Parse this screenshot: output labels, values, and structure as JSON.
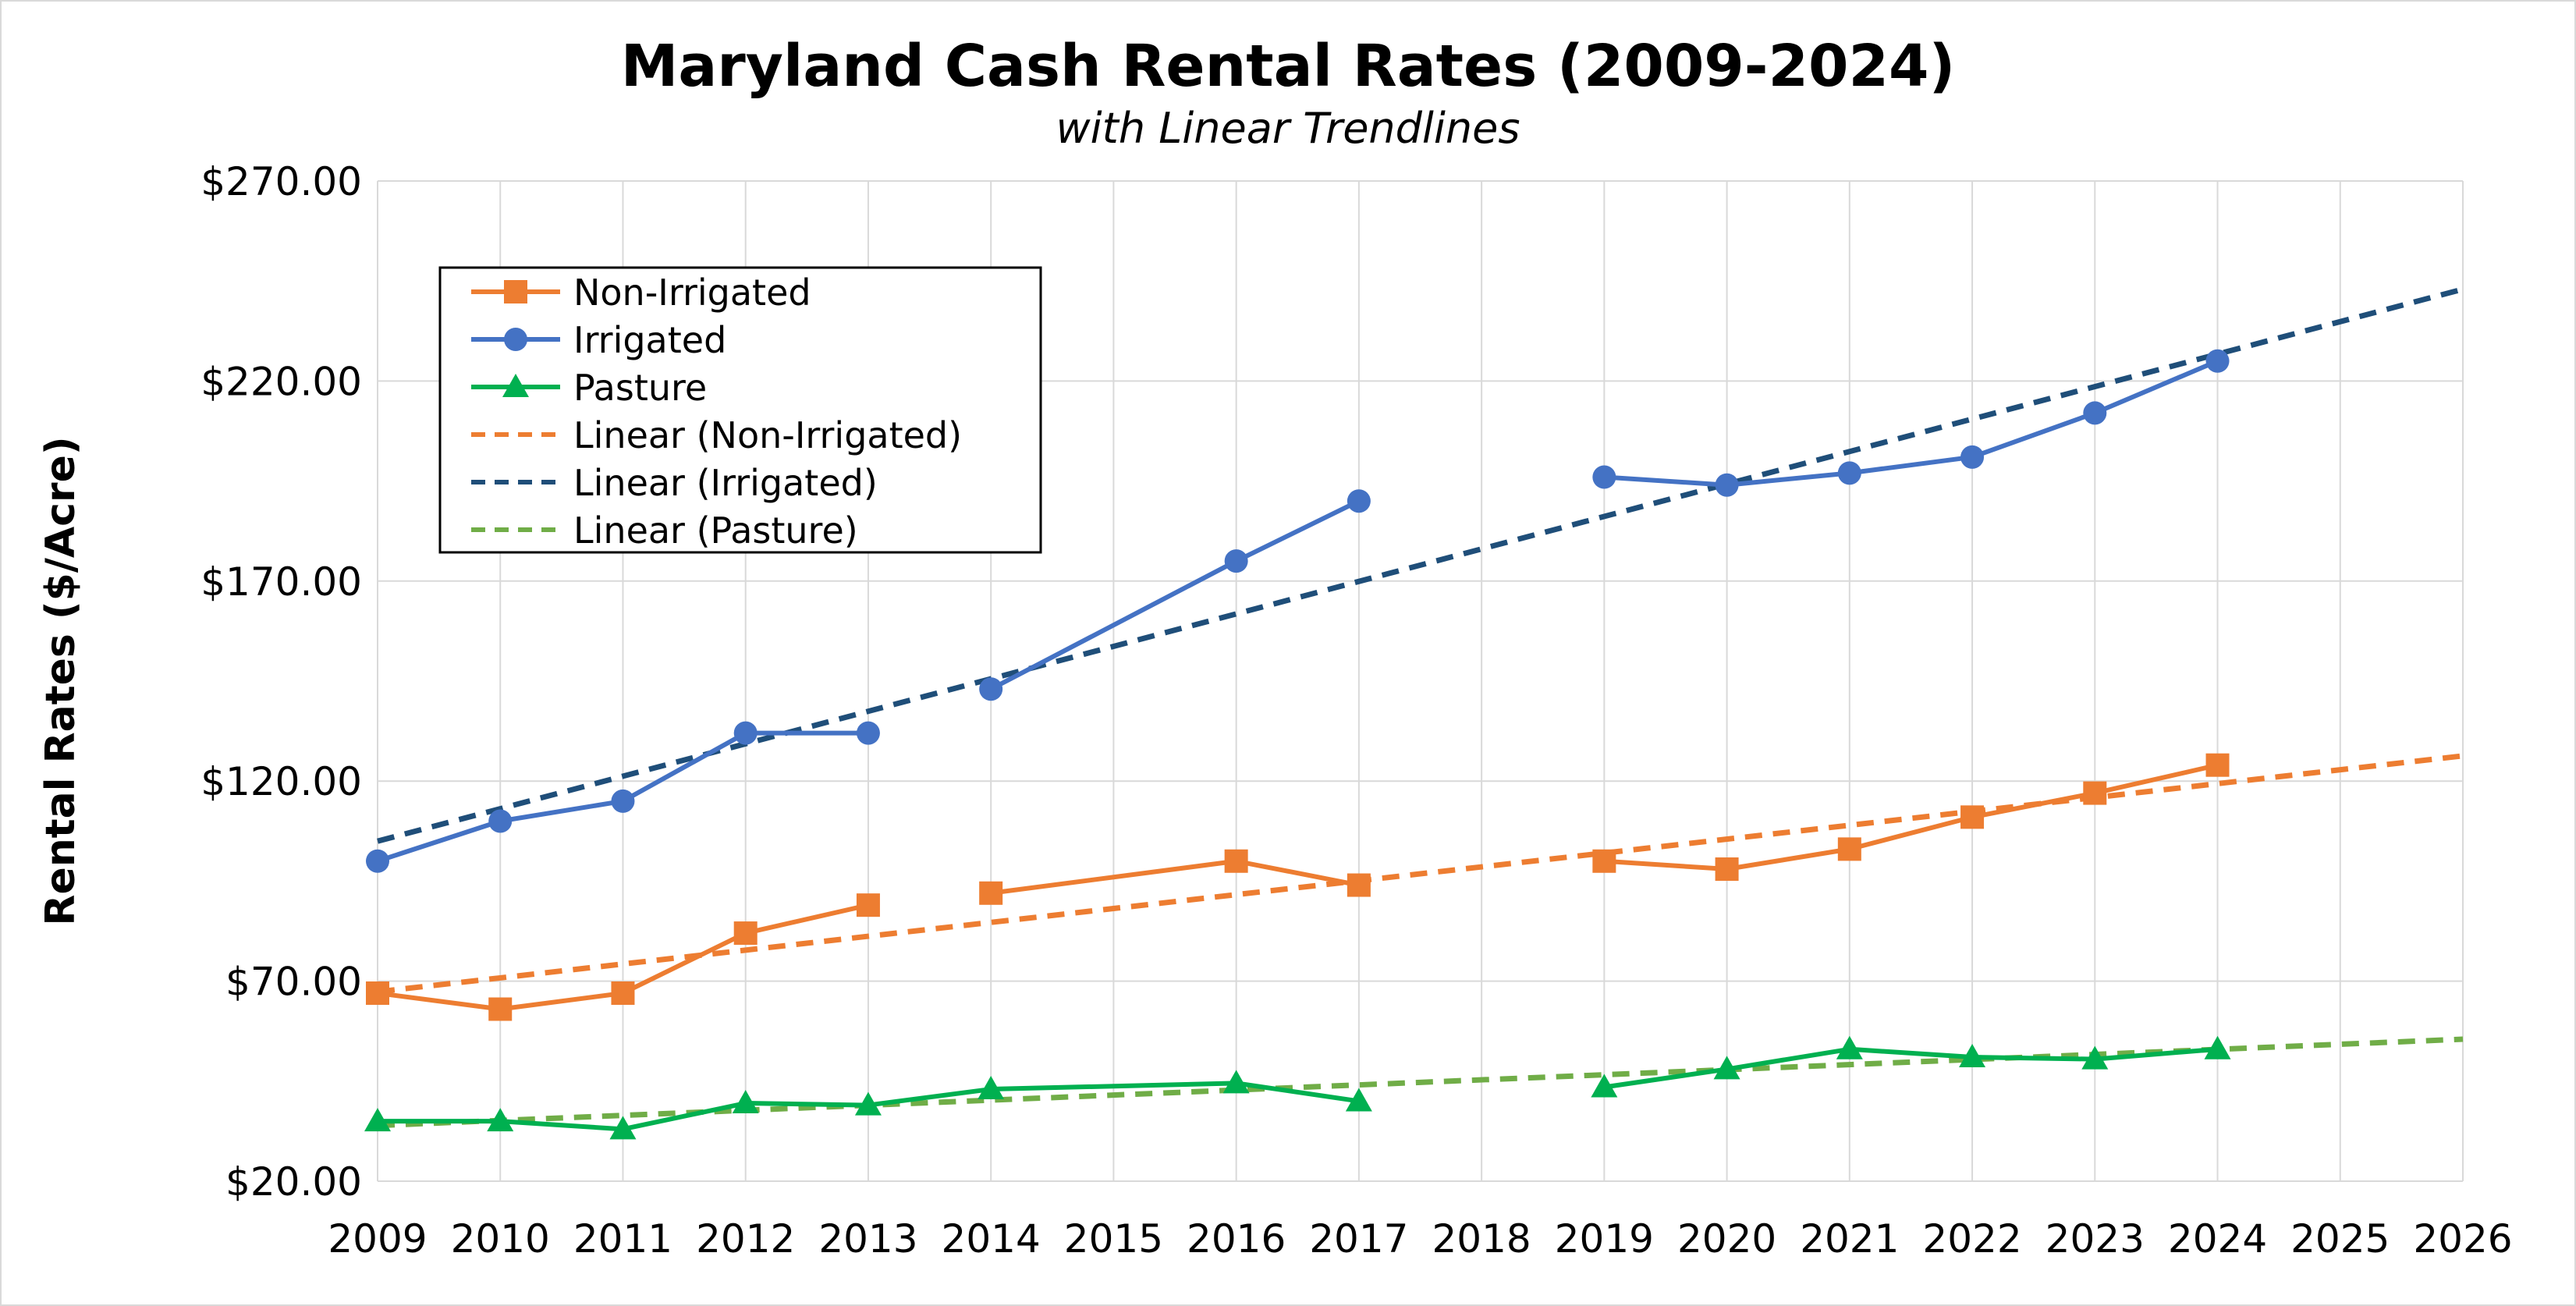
{
  "chart_data": {
    "type": "line",
    "title": "Maryland Cash Rental Rates (2009-2024)",
    "subtitle": "with Linear Trendlines",
    "ylabel": "Rental Rates ($/Acre)",
    "xlabel": "",
    "categories": [
      "2009",
      "2010",
      "2011",
      "2012",
      "2013",
      "2014",
      "2015",
      "2016",
      "2017",
      "2018",
      "2019",
      "2020",
      "2021",
      "2022",
      "2023",
      "2024",
      "2025",
      "2026"
    ],
    "ylim": [
      20,
      270
    ],
    "yticks": [
      "$20.00",
      "$70.00",
      "$120.00",
      "$170.00",
      "$220.00",
      "$270.00"
    ],
    "ytick_values": [
      20,
      70,
      120,
      170,
      220,
      270
    ],
    "grid": true,
    "legend_position": "top-left",
    "series": [
      {
        "name": "Non-Irrigated",
        "color": "#ED7D31",
        "marker": "square",
        "segments": [
          [
            [
              "2009",
              67
            ],
            [
              "2010",
              63
            ],
            [
              "2011",
              67
            ],
            [
              "2012",
              82
            ],
            [
              "2013",
              89
            ]
          ],
          [
            [
              "2014",
              92
            ],
            [
              "2016",
              100
            ],
            [
              "2017",
              94
            ]
          ],
          [
            [
              "2019",
              100
            ],
            [
              "2020",
              98
            ],
            [
              "2021",
              103
            ],
            [
              "2022",
              111
            ],
            [
              "2023",
              117
            ],
            [
              "2024",
              124
            ]
          ]
        ]
      },
      {
        "name": "Irrigated",
        "color": "#4472C4",
        "marker": "circle",
        "segments": [
          [
            [
              "2009",
              100
            ],
            [
              "2010",
              110
            ],
            [
              "2011",
              115
            ],
            [
              "2012",
              132
            ],
            [
              "2013",
              132
            ]
          ],
          [
            [
              "2014",
              143
            ],
            [
              "2016",
              175
            ],
            [
              "2017",
              190
            ]
          ],
          [
            [
              "2019",
              196
            ],
            [
              "2020",
              194
            ],
            [
              "2021",
              197
            ],
            [
              "2022",
              201
            ],
            [
              "2023",
              212
            ],
            [
              "2024",
              225
            ]
          ]
        ]
      },
      {
        "name": "Pasture",
        "color": "#00B050",
        "marker": "triangle",
        "segments": [
          [
            [
              "2009",
              35
            ],
            [
              "2010",
              35
            ],
            [
              "2011",
              33
            ],
            [
              "2012",
              39.5
            ],
            [
              "2013",
              39
            ],
            [
              "2014",
              43
            ],
            [
              "2016",
              44.5
            ],
            [
              "2017",
              40
            ]
          ],
          [
            [
              "2019",
              43.5
            ],
            [
              "2020",
              48
            ],
            [
              "2021",
              53
            ],
            [
              "2022",
              51
            ],
            [
              "2023",
              50.5
            ],
            [
              "2024",
              53
            ]
          ]
        ]
      }
    ],
    "trendlines": [
      {
        "name": "Linear (Non-Irrigated)",
        "of": "Non-Irrigated",
        "color": "#ED7D31",
        "style": "dashed"
      },
      {
        "name": "Linear (Irrigated)",
        "of": "Irrigated",
        "color": "#1F4E79",
        "style": "dashed"
      },
      {
        "name": "Linear (Pasture)",
        "of": "Pasture",
        "color": "#70AD47",
        "style": "dashed"
      }
    ]
  }
}
